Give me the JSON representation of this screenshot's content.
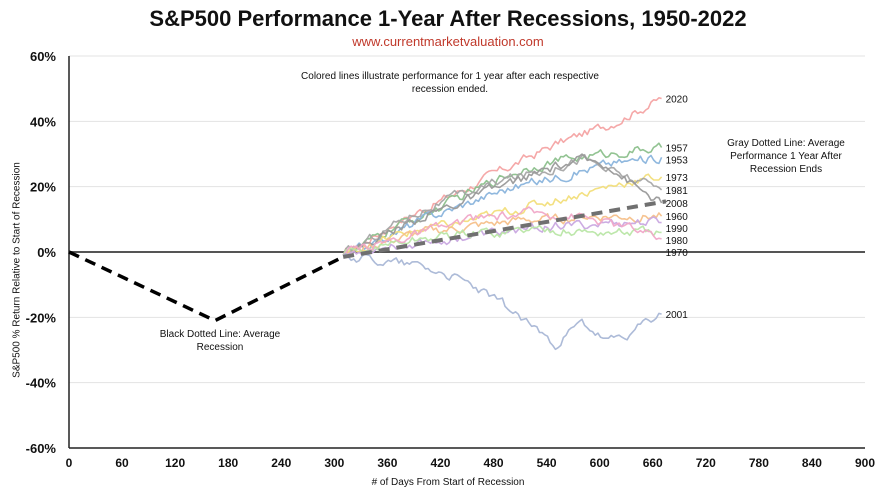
{
  "header": {
    "title": "S&P500 Performance 1-Year After Recessions, 1950-2022",
    "subtitle": "www.currentmarketvaluation.com"
  },
  "notes": {
    "colored": "Colored lines illustrate performance for 1 year after each respective recession ended.",
    "gray": "Gray Dotted Line: Average Performance 1 Year After Recession Ends",
    "black": "Black Dotted Line: Average Recession"
  },
  "colors": {
    "average_recession": "#000000",
    "average_after": "#707070",
    "zero_line": "#555555",
    "grid": "#e3e3e3"
  },
  "chart_data": {
    "type": "line",
    "title": "S&P500 Performance 1-Year After Recessions, 1950-2022",
    "xlabel": "# of Days From Start of Recession",
    "ylabel": "S&P500 % Return Relative to Start of Recession",
    "xlim": [
      0,
      900
    ],
    "ylim": [
      -60,
      60
    ],
    "xticks": [
      0,
      60,
      120,
      180,
      240,
      300,
      360,
      420,
      480,
      540,
      600,
      660,
      720,
      780,
      840,
      900
    ],
    "yticks": [
      -60,
      -40,
      -20,
      0,
      20,
      40,
      60
    ],
    "ytick_suffix": "%",
    "grid": "horizontal",
    "average_recession": {
      "style": "dashed",
      "x": [
        0,
        165,
        310
      ],
      "y": [
        0,
        -21,
        -1.5
      ]
    },
    "average_after": {
      "style": "dashed",
      "x": [
        310,
        675
      ],
      "y": [
        -1.5,
        15.5
      ]
    },
    "series": [
      {
        "name": "2020",
        "color": "#f4a3a3",
        "x": [
          310,
          340,
          370,
          400,
          430,
          460,
          490,
          520,
          550,
          580,
          610,
          640,
          670
        ],
        "y": [
          -1,
          4,
          9,
          13,
          17,
          21,
          25,
          29,
          33,
          36,
          39,
          43,
          47
        ]
      },
      {
        "name": "1957",
        "color": "#8cc08c",
        "x": [
          310,
          340,
          370,
          400,
          430,
          460,
          490,
          520,
          550,
          580,
          610,
          640,
          670
        ],
        "y": [
          -1,
          3,
          8,
          11,
          15,
          19,
          23,
          26,
          28,
          29,
          30,
          31,
          32
        ]
      },
      {
        "name": "1953",
        "color": "#8ab4dc",
        "x": [
          310,
          340,
          370,
          400,
          430,
          460,
          490,
          520,
          550,
          580,
          610,
          640,
          670
        ],
        "y": [
          -1,
          2,
          6,
          10,
          13,
          16,
          19,
          21,
          23,
          25,
          27,
          28,
          29
        ]
      },
      {
        "name": "1973",
        "color": "#f2de7a",
        "x": [
          310,
          340,
          370,
          400,
          430,
          460,
          490,
          520,
          550,
          580,
          610,
          640,
          670
        ],
        "y": [
          -1,
          2,
          5,
          7,
          8,
          10,
          12,
          14,
          16,
          18,
          20,
          22,
          23
        ]
      },
      {
        "name": "1981",
        "color": "#a6a6a6",
        "x": [
          310,
          340,
          370,
          400,
          430,
          460,
          490,
          520,
          550,
          580,
          610,
          640,
          670
        ],
        "y": [
          -1,
          4,
          9,
          13,
          16,
          19,
          22,
          24,
          26,
          29,
          25,
          22,
          19
        ]
      },
      {
        "name": "2008",
        "color": "#999999",
        "x": [
          310,
          340,
          370,
          400,
          430,
          460,
          490,
          520,
          550,
          580,
          610,
          640,
          670
        ],
        "y": [
          -1,
          3,
          7,
          11,
          14,
          17,
          20,
          23,
          26,
          28,
          27,
          20,
          15
        ]
      },
      {
        "name": "1960",
        "color": "#f6c08a",
        "x": [
          310,
          340,
          370,
          400,
          430,
          460,
          490,
          520,
          550,
          580,
          610,
          640,
          670
        ],
        "y": [
          -1,
          2,
          4,
          6,
          7,
          8,
          9,
          10,
          10,
          11,
          11,
          11,
          11
        ]
      },
      {
        "name": "1990",
        "color": "#c9a8e0",
        "x": [
          310,
          340,
          370,
          400,
          430,
          460,
          490,
          520,
          550,
          580,
          610,
          640,
          670
        ],
        "y": [
          -1,
          1,
          2,
          3,
          4,
          5,
          6,
          7,
          8,
          8,
          9,
          9,
          9
        ]
      },
      {
        "name": "1980",
        "color": "#b9e6a6",
        "x": [
          310,
          340,
          370,
          400,
          430,
          460,
          490,
          520,
          550,
          580,
          610,
          640,
          670
        ],
        "y": [
          -1,
          1,
          3,
          4,
          5,
          6,
          6,
          7,
          7,
          6,
          6,
          6,
          6
        ]
      },
      {
        "name": "1970",
        "color": "#f0a8c8",
        "x": [
          310,
          340,
          370,
          400,
          430,
          460,
          490,
          520,
          550,
          580,
          610,
          640,
          670
        ],
        "y": [
          -1,
          2,
          4,
          6,
          8,
          10,
          11,
          12,
          12,
          11,
          9,
          7,
          4
        ]
      },
      {
        "name": "2001",
        "color": "#a9b7d6",
        "x": [
          310,
          340,
          370,
          400,
          430,
          460,
          490,
          520,
          550,
          580,
          610,
          640,
          670
        ],
        "y": [
          -1,
          -2,
          -3,
          -4,
          -7,
          -11,
          -16,
          -22,
          -28,
          -22,
          -28,
          -24,
          -19
        ]
      }
    ],
    "label_offsets_note": ""
  }
}
